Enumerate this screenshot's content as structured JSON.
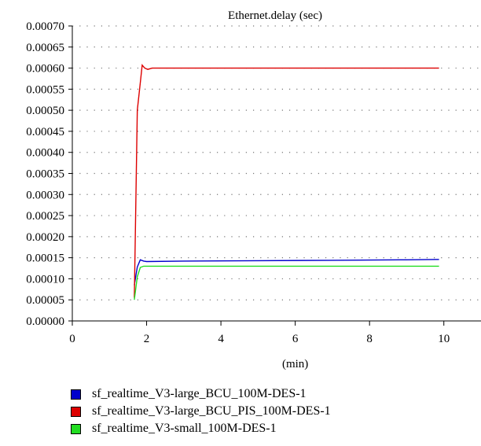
{
  "chart_data": {
    "type": "line",
    "title": "Ethernet.delay (sec)",
    "xlabel": "(min)",
    "ylabel": "",
    "xlim": [
      0,
      11
    ],
    "ylim": [
      0,
      0.0007
    ],
    "xticks": [
      0,
      2,
      4,
      6,
      8,
      10
    ],
    "xtick_labels": [
      "0",
      "2",
      "4",
      "6",
      "8",
      "10"
    ],
    "yticks": [
      0,
      5e-05,
      0.0001,
      0.00015,
      0.0002,
      0.00025,
      0.0003,
      0.00035,
      0.0004,
      0.00045,
      0.0005,
      0.00055,
      0.0006,
      0.00065,
      0.0007
    ],
    "ytick_labels": [
      "0.00000",
      "0.00005",
      "0.00010",
      "0.00015",
      "0.00020",
      "0.00025",
      "0.00030",
      "0.00035",
      "0.00040",
      "0.00045",
      "0.00050",
      "0.00055",
      "0.00060",
      "0.00065",
      "0.00070"
    ],
    "grid": "dotted",
    "legend_position": "bottom",
    "series": [
      {
        "name": "sf_realtime_V3-large_BCU_100M-DES-1",
        "color": "#0000cc",
        "x": [
          1.67,
          1.75,
          1.83,
          1.92,
          2.0,
          3.0,
          5.0,
          7.0,
          9.0,
          9.87
        ],
        "y": [
          8.5e-05,
          0.000128,
          0.000145,
          0.000142,
          0.000141,
          0.000142,
          0.000143,
          0.000144,
          0.000145,
          0.000146
        ]
      },
      {
        "name": "sf_realtime_V3-large_BCU_PIS_100M-DES-1",
        "color": "#dd0000",
        "x": [
          1.67,
          1.75,
          1.83,
          1.88,
          1.95,
          2.03,
          2.15,
          3.0,
          5.0,
          7.0,
          9.0,
          9.87
        ],
        "y": [
          5.5e-05,
          0.0005,
          0.000565,
          0.000607,
          0.0006,
          0.000597,
          0.0006,
          0.0006,
          0.0006,
          0.0006,
          0.0006,
          0.0006
        ]
      },
      {
        "name": "sf_realtime_V3-small_100M-DES-1",
        "color": "#22dd22",
        "x": [
          1.67,
          1.75,
          1.83,
          1.92,
          2.0,
          3.0,
          5.0,
          7.0,
          9.0,
          9.87
        ],
        "y": [
          5e-05,
          0.000105,
          0.000127,
          0.00013,
          0.00013,
          0.00013,
          0.00013,
          0.00013,
          0.00013,
          0.00013
        ]
      }
    ]
  }
}
